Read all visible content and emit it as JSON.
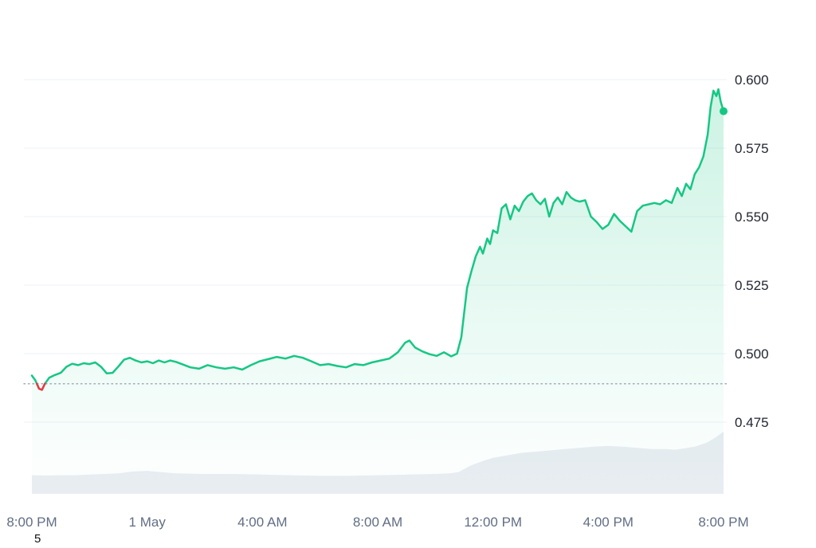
{
  "chart_data": {
    "type": "area",
    "asset_price_chart": true,
    "xlim_hours": [
      0,
      24
    ],
    "ylim": [
      0.465,
      0.61
    ],
    "grid": true,
    "legend": false,
    "previous_close": 0.489,
    "x_axis": {
      "ticks": [
        {
          "t": 0,
          "label": "8:00 PM"
        },
        {
          "t": 4,
          "label": "1 May"
        },
        {
          "t": 8,
          "label": "4:00 AM"
        },
        {
          "t": 12,
          "label": "8:00 AM"
        },
        {
          "t": 16,
          "label": "12:00 PM"
        },
        {
          "t": 20,
          "label": "4:00 PM"
        },
        {
          "t": 24,
          "label": "8:00 PM"
        }
      ],
      "sub_label": {
        "t": 0.2,
        "label": "5"
      }
    },
    "y_axis": {
      "ticks": [
        {
          "value": 0.6,
          "label": "0.600"
        },
        {
          "value": 0.575,
          "label": "0.575"
        },
        {
          "value": 0.55,
          "label": "0.550"
        },
        {
          "value": 0.525,
          "label": "0.525"
        },
        {
          "value": 0.5,
          "label": "0.500"
        },
        {
          "value": 0.475,
          "label": "0.475"
        }
      ]
    },
    "series": [
      {
        "name": "price",
        "color": "#16c784",
        "below_close_color": "#ea3943",
        "points": [
          [
            0.0,
            0.492
          ],
          [
            0.12,
            0.4903
          ],
          [
            0.25,
            0.4872
          ],
          [
            0.35,
            0.4868
          ],
          [
            0.45,
            0.489
          ],
          [
            0.6,
            0.4912
          ],
          [
            0.8,
            0.4922
          ],
          [
            1.0,
            0.493
          ],
          [
            1.2,
            0.4952
          ],
          [
            1.4,
            0.4963
          ],
          [
            1.6,
            0.4958
          ],
          [
            1.8,
            0.4965
          ],
          [
            2.0,
            0.4962
          ],
          [
            2.2,
            0.4968
          ],
          [
            2.4,
            0.4952
          ],
          [
            2.6,
            0.4928
          ],
          [
            2.8,
            0.493
          ],
          [
            3.0,
            0.4953
          ],
          [
            3.2,
            0.4978
          ],
          [
            3.4,
            0.4985
          ],
          [
            3.6,
            0.4975
          ],
          [
            3.8,
            0.4968
          ],
          [
            4.0,
            0.4972
          ],
          [
            4.2,
            0.4965
          ],
          [
            4.4,
            0.4975
          ],
          [
            4.6,
            0.4968
          ],
          [
            4.8,
            0.4975
          ],
          [
            5.0,
            0.497
          ],
          [
            5.2,
            0.4962
          ],
          [
            5.5,
            0.495
          ],
          [
            5.8,
            0.4945
          ],
          [
            6.1,
            0.4958
          ],
          [
            6.4,
            0.495
          ],
          [
            6.7,
            0.4945
          ],
          [
            7.0,
            0.495
          ],
          [
            7.3,
            0.4942
          ],
          [
            7.6,
            0.4958
          ],
          [
            7.9,
            0.4972
          ],
          [
            8.2,
            0.498
          ],
          [
            8.5,
            0.4988
          ],
          [
            8.8,
            0.4982
          ],
          [
            9.1,
            0.4992
          ],
          [
            9.4,
            0.4985
          ],
          [
            9.7,
            0.4972
          ],
          [
            10.0,
            0.4958
          ],
          [
            10.3,
            0.4962
          ],
          [
            10.6,
            0.4955
          ],
          [
            10.9,
            0.495
          ],
          [
            11.2,
            0.4962
          ],
          [
            11.5,
            0.4958
          ],
          [
            11.8,
            0.4968
          ],
          [
            12.1,
            0.4975
          ],
          [
            12.4,
            0.4982
          ],
          [
            12.7,
            0.5005
          ],
          [
            12.95,
            0.504
          ],
          [
            13.1,
            0.5048
          ],
          [
            13.3,
            0.5022
          ],
          [
            13.55,
            0.5008
          ],
          [
            13.8,
            0.4998
          ],
          [
            14.05,
            0.4992
          ],
          [
            14.3,
            0.5005
          ],
          [
            14.55,
            0.499
          ],
          [
            14.75,
            0.5
          ],
          [
            14.9,
            0.506
          ],
          [
            15.0,
            0.515
          ],
          [
            15.1,
            0.524
          ],
          [
            15.25,
            0.53
          ],
          [
            15.4,
            0.5355
          ],
          [
            15.55,
            0.539
          ],
          [
            15.65,
            0.5365
          ],
          [
            15.8,
            0.542
          ],
          [
            15.9,
            0.54
          ],
          [
            16.0,
            0.545
          ],
          [
            16.15,
            0.544
          ],
          [
            16.3,
            0.553
          ],
          [
            16.45,
            0.5545
          ],
          [
            16.6,
            0.549
          ],
          [
            16.75,
            0.554
          ],
          [
            16.9,
            0.552
          ],
          [
            17.05,
            0.5555
          ],
          [
            17.2,
            0.5575
          ],
          [
            17.35,
            0.5585
          ],
          [
            17.5,
            0.556
          ],
          [
            17.65,
            0.5545
          ],
          [
            17.8,
            0.5565
          ],
          [
            17.95,
            0.55
          ],
          [
            18.1,
            0.555
          ],
          [
            18.25,
            0.557
          ],
          [
            18.4,
            0.5545
          ],
          [
            18.55,
            0.559
          ],
          [
            18.7,
            0.557
          ],
          [
            18.85,
            0.556
          ],
          [
            19.0,
            0.5555
          ],
          [
            19.2,
            0.556
          ],
          [
            19.4,
            0.55
          ],
          [
            19.6,
            0.548
          ],
          [
            19.8,
            0.5455
          ],
          [
            20.0,
            0.547
          ],
          [
            20.2,
            0.551
          ],
          [
            20.4,
            0.5485
          ],
          [
            20.6,
            0.5465
          ],
          [
            20.8,
            0.5445
          ],
          [
            21.0,
            0.552
          ],
          [
            21.2,
            0.554
          ],
          [
            21.4,
            0.5545
          ],
          [
            21.6,
            0.555
          ],
          [
            21.8,
            0.5545
          ],
          [
            22.0,
            0.556
          ],
          [
            22.2,
            0.555
          ],
          [
            22.4,
            0.5605
          ],
          [
            22.55,
            0.5575
          ],
          [
            22.7,
            0.562
          ],
          [
            22.85,
            0.56
          ],
          [
            23.0,
            0.5655
          ],
          [
            23.15,
            0.568
          ],
          [
            23.3,
            0.572
          ],
          [
            23.45,
            0.58
          ],
          [
            23.55,
            0.59
          ],
          [
            23.65,
            0.596
          ],
          [
            23.75,
            0.594
          ],
          [
            23.82,
            0.5965
          ],
          [
            23.9,
            0.592
          ],
          [
            24.0,
            0.5885
          ]
        ],
        "last_value": 0.5885
      }
    ],
    "volume": {
      "name": "volume",
      "color": "#e9edf2",
      "points_normalized": [
        [
          0,
          0.3
        ],
        [
          0.5,
          0.295
        ],
        [
          1,
          0.3
        ],
        [
          1.5,
          0.3
        ],
        [
          2,
          0.31
        ],
        [
          2.5,
          0.32
        ],
        [
          3,
          0.33
        ],
        [
          3.5,
          0.36
        ],
        [
          4,
          0.37
        ],
        [
          4.5,
          0.35
        ],
        [
          5,
          0.33
        ],
        [
          5.5,
          0.325
        ],
        [
          6,
          0.32
        ],
        [
          6.5,
          0.32
        ],
        [
          7,
          0.32
        ],
        [
          7.5,
          0.315
        ],
        [
          8,
          0.31
        ],
        [
          8.5,
          0.305
        ],
        [
          9,
          0.3
        ],
        [
          9.5,
          0.295
        ],
        [
          10,
          0.29
        ],
        [
          10.5,
          0.29
        ],
        [
          11,
          0.29
        ],
        [
          11.5,
          0.295
        ],
        [
          12,
          0.3
        ],
        [
          12.5,
          0.305
        ],
        [
          13,
          0.31
        ],
        [
          13.5,
          0.315
        ],
        [
          14,
          0.32
        ],
        [
          14.5,
          0.33
        ],
        [
          14.8,
          0.35
        ],
        [
          15.2,
          0.45
        ],
        [
          15.6,
          0.52
        ],
        [
          16,
          0.58
        ],
        [
          16.5,
          0.62
        ],
        [
          17,
          0.66
        ],
        [
          17.5,
          0.68
        ],
        [
          18,
          0.7
        ],
        [
          18.5,
          0.72
        ],
        [
          19,
          0.74
        ],
        [
          19.5,
          0.76
        ],
        [
          20,
          0.77
        ],
        [
          20.5,
          0.76
        ],
        [
          21,
          0.74
        ],
        [
          21.5,
          0.72
        ],
        [
          22,
          0.72
        ],
        [
          22.3,
          0.71
        ],
        [
          22.6,
          0.73
        ],
        [
          23,
          0.76
        ],
        [
          23.4,
          0.82
        ],
        [
          23.7,
          0.9
        ],
        [
          24,
          1.0
        ]
      ]
    },
    "colors": {
      "line": "#16c784",
      "below_close": "#ea3943",
      "area_top": "rgba(22,199,132,0.22)",
      "area_bottom": "rgba(22,199,132,0)",
      "volume": "#e9edf2",
      "grid": "#eff2f5",
      "dotted_line": "#9aa4b2",
      "y_label": "#222531",
      "x_label": "#616e85",
      "sub_label": "#111111",
      "background": "#ffffff"
    }
  }
}
